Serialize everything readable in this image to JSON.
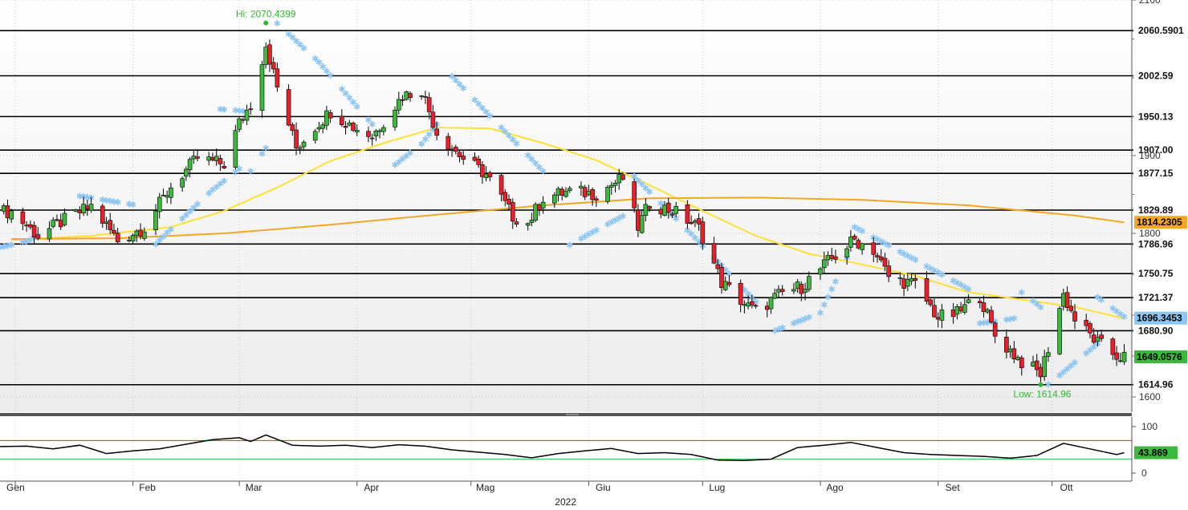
{
  "chart_data": [
    {
      "type": "candlestick",
      "title": "",
      "xlabel": "2022",
      "ylabel": "",
      "ylim": [
        1570,
        2100
      ],
      "y_ticks": [
        1600,
        1800,
        1900,
        2100
      ],
      "x_months": [
        {
          "label": "Gen",
          "date": "2022-01-01"
        },
        {
          "label": "Feb",
          "date": "2022-02-01"
        },
        {
          "label": "Mar",
          "date": "2022-03-01"
        },
        {
          "label": "Apr",
          "date": "2022-04-01"
        },
        {
          "label": "Mag",
          "date": "2022-05-01"
        },
        {
          "label": "Giu",
          "date": "2022-06-01"
        },
        {
          "label": "Lug",
          "date": "2022-07-01"
        },
        {
          "label": "Ago",
          "date": "2022-08-01"
        },
        {
          "label": "Set",
          "date": "2022-09-01"
        },
        {
          "label": "Ott",
          "date": "2022-10-01"
        }
      ],
      "year_label": "2022",
      "x_range": [
        "2021-12-28",
        "2022-10-22"
      ],
      "horizontal_levels": [
        {
          "value": 2060.5901,
          "label": "2060.5901"
        },
        {
          "value": 2002.59,
          "label": "2002.59"
        },
        {
          "value": 1950.13,
          "label": "1950.13"
        },
        {
          "value": 1907.0,
          "label": "1907.00"
        },
        {
          "value": 1877.15,
          "label": "1877.15"
        },
        {
          "value": 1829.89,
          "label": "1829.89"
        },
        {
          "value": 1786.96,
          "label": "1786.96"
        },
        {
          "value": 1750.75,
          "label": "1750.75"
        },
        {
          "value": 1721.37,
          "label": "1721.37"
        },
        {
          "value": 1680.9,
          "label": "1680.90"
        },
        {
          "value": 1614.96,
          "label": "1614.96"
        }
      ],
      "badges": [
        {
          "value": 1814.2305,
          "label": "1814.2305",
          "color": "#f5a623"
        },
        {
          "value": 1696.3453,
          "label": "1696.3453",
          "color": "#8ec6f2"
        },
        {
          "value": 1649.0576,
          "label": "1649.0576",
          "color": "#3cb83c"
        }
      ],
      "annotations": [
        {
          "text": "Hi: 2070.4399",
          "date": "2022-03-08",
          "value": 2070.4399
        },
        {
          "text": "Low: 1614.96",
          "date": "2022-09-28",
          "value": 1614.96
        }
      ],
      "close_path": [
        [
          "2021-12-31",
          1828
        ],
        [
          "2022-01-07",
          1797
        ],
        [
          "2022-01-14",
          1817
        ],
        [
          "2022-01-21",
          1835
        ],
        [
          "2022-01-28",
          1791
        ],
        [
          "2022-02-04",
          1808
        ],
        [
          "2022-02-11",
          1860
        ],
        [
          "2022-02-18",
          1897
        ],
        [
          "2022-02-25",
          1889
        ],
        [
          "2022-03-01",
          1942
        ],
        [
          "2022-03-04",
          1966
        ],
        [
          "2022-03-08",
          2043
        ],
        [
          "2022-03-11",
          1987
        ],
        [
          "2022-03-16",
          1910
        ],
        [
          "2022-03-21",
          1937
        ],
        [
          "2022-03-25",
          1957
        ],
        [
          "2022-03-31",
          1937
        ],
        [
          "2022-04-05",
          1925
        ],
        [
          "2022-04-13",
          1977
        ],
        [
          "2022-04-18",
          1985
        ],
        [
          "2022-04-22",
          1930
        ],
        [
          "2022-04-29",
          1896
        ],
        [
          "2022-05-05",
          1876
        ],
        [
          "2022-05-12",
          1822
        ],
        [
          "2022-05-16",
          1813
        ],
        [
          "2022-05-20",
          1846
        ],
        [
          "2022-05-27",
          1854
        ],
        [
          "2022-06-03",
          1851
        ],
        [
          "2022-06-10",
          1871
        ],
        [
          "2022-06-14",
          1808
        ],
        [
          "2022-06-17",
          1839
        ],
        [
          "2022-06-24",
          1827
        ],
        [
          "2022-06-30",
          1807
        ],
        [
          "2022-07-06",
          1740
        ],
        [
          "2022-07-13",
          1710
        ],
        [
          "2022-07-15",
          1705
        ],
        [
          "2022-07-22",
          1727
        ],
        [
          "2022-07-27",
          1735
        ],
        [
          "2022-08-03",
          1765
        ],
        [
          "2022-08-10",
          1792
        ],
        [
          "2022-08-15",
          1780
        ],
        [
          "2022-08-19",
          1747
        ],
        [
          "2022-08-26",
          1737
        ],
        [
          "2022-09-01",
          1697
        ],
        [
          "2022-09-06",
          1702
        ],
        [
          "2022-09-12",
          1724
        ],
        [
          "2022-09-16",
          1675
        ],
        [
          "2022-09-23",
          1643
        ],
        [
          "2022-09-28",
          1628
        ],
        [
          "2022-10-04",
          1725
        ],
        [
          "2022-10-07",
          1695
        ],
        [
          "2022-10-13",
          1666
        ],
        [
          "2022-10-18",
          1650
        ],
        [
          "2022-10-20",
          1649
        ]
      ],
      "series": [
        {
          "name": "",
          "type": "line",
          "color": "#ffe135",
          "values": [
            [
              "2021-12-31",
              1792
            ],
            [
              "2022-01-21",
              1797
            ],
            [
              "2022-02-11",
              1808
            ],
            [
              "2022-02-25",
              1829
            ],
            [
              "2022-03-11",
              1859
            ],
            [
              "2022-03-25",
              1893
            ],
            [
              "2022-04-08",
              1916
            ],
            [
              "2022-04-22",
              1936
            ],
            [
              "2022-05-06",
              1935
            ],
            [
              "2022-05-20",
              1916
            ],
            [
              "2022-06-03",
              1894
            ],
            [
              "2022-06-17",
              1862
            ],
            [
              "2022-07-01",
              1829
            ],
            [
              "2022-07-15",
              1797
            ],
            [
              "2022-07-29",
              1775
            ],
            [
              "2022-08-12",
              1762
            ],
            [
              "2022-08-26",
              1748
            ],
            [
              "2022-09-09",
              1728
            ],
            [
              "2022-09-23",
              1719
            ],
            [
              "2022-10-07",
              1710
            ],
            [
              "2022-10-20",
              1696
            ]
          ]
        },
        {
          "name": "",
          "type": "line",
          "color": "#f5a623",
          "values": [
            [
              "2021-12-31",
              1793
            ],
            [
              "2022-01-28",
              1794
            ],
            [
              "2022-02-25",
              1800
            ],
            [
              "2022-03-25",
              1811
            ],
            [
              "2022-04-22",
              1824
            ],
            [
              "2022-05-20",
              1836
            ],
            [
              "2022-06-17",
              1845
            ],
            [
              "2022-07-15",
              1846
            ],
            [
              "2022-08-12",
              1843
            ],
            [
              "2022-09-09",
              1836
            ],
            [
              "2022-10-07",
              1823
            ],
            [
              "2022-10-20",
              1814
            ]
          ]
        }
      ],
      "sar_segments": [
        {
          "side": "below",
          "values": [
            [
              "2021-12-28",
              1783
            ],
            [
              "2022-01-04",
              1790
            ],
            [
              "2022-01-07",
              1797
            ]
          ]
        },
        {
          "side": "above",
          "values": [
            [
              "2022-01-18",
              1848
            ],
            [
              "2022-02-01",
              1837
            ]
          ]
        },
        {
          "side": "below",
          "values": [
            [
              "2022-02-07",
              1787
            ],
            [
              "2022-02-22",
              1856
            ],
            [
              "2022-03-01",
              1883
            ]
          ]
        },
        {
          "side": "above",
          "values": [
            [
              "2022-02-24",
              1960
            ],
            [
              "2022-03-02",
              1957
            ]
          ]
        },
        {
          "side": "below",
          "values": [
            [
              "2022-03-04",
              1880
            ],
            [
              "2022-03-08",
              1910
            ]
          ]
        },
        {
          "side": "above",
          "values": [
            [
              "2022-03-11",
              2070
            ],
            [
              "2022-03-22",
              2020
            ],
            [
              "2022-04-05",
              1940
            ]
          ]
        },
        {
          "side": "below",
          "values": [
            [
              "2022-04-11",
              1888
            ],
            [
              "2022-04-18",
              1915
            ],
            [
              "2022-04-22",
              1940
            ]
          ]
        },
        {
          "side": "above",
          "values": [
            [
              "2022-04-26",
              2002
            ],
            [
              "2022-05-20",
              1880
            ]
          ]
        },
        {
          "side": "below",
          "values": [
            [
              "2022-05-27",
              1786
            ],
            [
              "2022-06-10",
              1822
            ]
          ]
        },
        {
          "side": "above",
          "values": [
            [
              "2022-06-13",
              1873
            ],
            [
              "2022-07-15",
              1716
            ]
          ]
        },
        {
          "side": "below",
          "values": [
            [
              "2022-07-20",
              1681
            ],
            [
              "2022-08-01",
              1703
            ],
            [
              "2022-08-08",
              1770
            ]
          ]
        },
        {
          "side": "above",
          "values": [
            [
              "2022-08-10",
              1808
            ],
            [
              "2022-09-09",
              1732
            ]
          ]
        },
        {
          "side": "below",
          "values": [
            [
              "2022-09-12",
              1690
            ],
            [
              "2022-09-21",
              1696
            ]
          ]
        },
        {
          "side": "above",
          "values": [
            [
              "2022-09-23",
              1728
            ],
            [
              "2022-09-28",
              1710
            ]
          ]
        },
        {
          "side": "below",
          "values": [
            [
              "2022-09-30",
              1615
            ],
            [
              "2022-10-13",
              1665
            ]
          ]
        },
        {
          "side": "above",
          "values": [
            [
              "2022-10-13",
              1722
            ],
            [
              "2022-10-20",
              1698
            ]
          ]
        }
      ],
      "colors": {
        "up": "#3cb83c",
        "down": "#e8202a",
        "level": "#000000",
        "sar": "#8ec6f2"
      }
    },
    {
      "type": "line",
      "title": "",
      "ylim": [
        0,
        100
      ],
      "y_ticks": [
        0,
        100
      ],
      "reference_lines": [
        {
          "value": 70,
          "color": "#e8202a"
        },
        {
          "value": 30,
          "color": "#3cb83c"
        }
      ],
      "badge": {
        "value": 43.869,
        "label": "43.869",
        "color": "#3cb83c"
      },
      "series": [
        {
          "name": "",
          "color": "#000000",
          "values": [
            [
              "2021-12-28",
              57
            ],
            [
              "2022-01-04",
              58
            ],
            [
              "2022-01-11",
              52
            ],
            [
              "2022-01-18",
              60
            ],
            [
              "2022-01-25",
              42
            ],
            [
              "2022-02-01",
              48
            ],
            [
              "2022-02-08",
              52
            ],
            [
              "2022-02-15",
              62
            ],
            [
              "2022-02-22",
              72
            ],
            [
              "2022-03-01",
              76
            ],
            [
              "2022-03-04",
              68
            ],
            [
              "2022-03-08",
              82
            ],
            [
              "2022-03-15",
              60
            ],
            [
              "2022-03-22",
              58
            ],
            [
              "2022-03-29",
              60
            ],
            [
              "2022-04-05",
              55
            ],
            [
              "2022-04-12",
              61
            ],
            [
              "2022-04-19",
              58
            ],
            [
              "2022-04-26",
              50
            ],
            [
              "2022-05-03",
              45
            ],
            [
              "2022-05-10",
              40
            ],
            [
              "2022-05-17",
              33
            ],
            [
              "2022-05-24",
              42
            ],
            [
              "2022-05-31",
              48
            ],
            [
              "2022-06-07",
              53
            ],
            [
              "2022-06-14",
              42
            ],
            [
              "2022-06-21",
              44
            ],
            [
              "2022-06-28",
              40
            ],
            [
              "2022-07-05",
              28
            ],
            [
              "2022-07-12",
              27
            ],
            [
              "2022-07-19",
              30
            ],
            [
              "2022-07-26",
              55
            ],
            [
              "2022-08-02",
              60
            ],
            [
              "2022-08-09",
              66
            ],
            [
              "2022-08-16",
              55
            ],
            [
              "2022-08-23",
              44
            ],
            [
              "2022-08-30",
              40
            ],
            [
              "2022-09-06",
              38
            ],
            [
              "2022-09-13",
              36
            ],
            [
              "2022-09-20",
              32
            ],
            [
              "2022-09-27",
              38
            ],
            [
              "2022-10-04",
              64
            ],
            [
              "2022-10-11",
              52
            ],
            [
              "2022-10-18",
              40
            ],
            [
              "2022-10-20",
              44
            ]
          ]
        }
      ]
    }
  ]
}
